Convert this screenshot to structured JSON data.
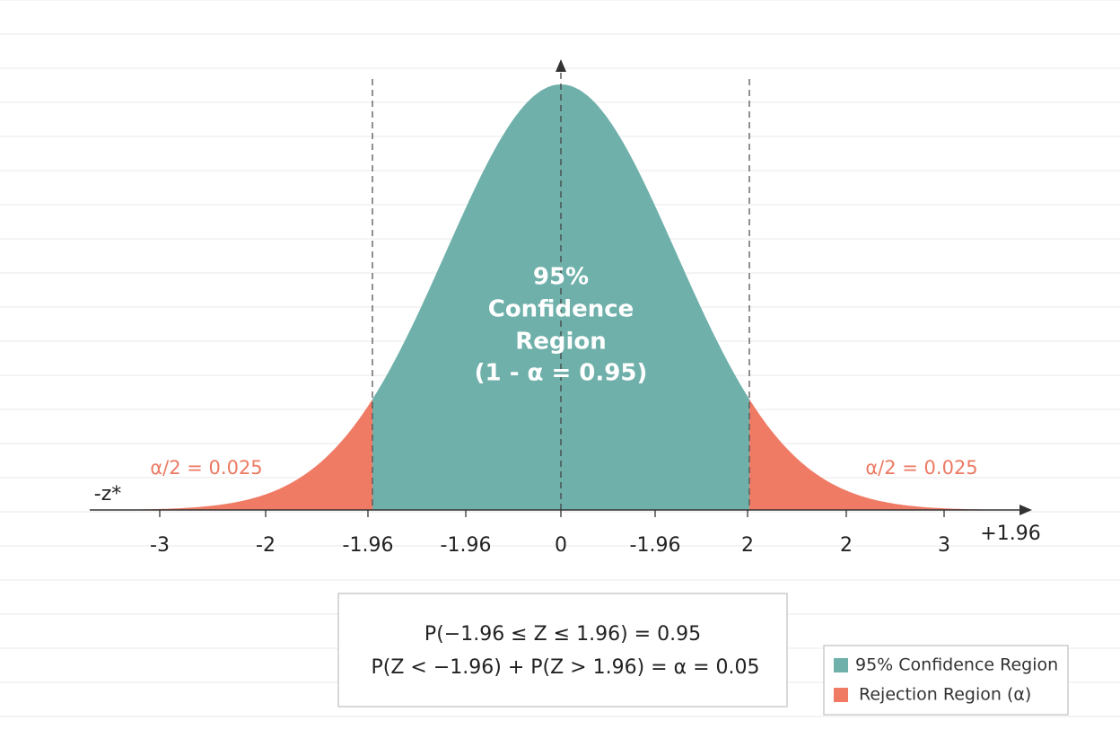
{
  "axis": {
    "tick_labels": [
      "-3",
      "-2",
      "-1.96",
      "-1.96",
      "0",
      "-1.96",
      "2",
      "2",
      "3"
    ],
    "right_label": "+1.96",
    "left_label": "-z*"
  },
  "annotations": {
    "left_tail": "α/2 = 0.025",
    "right_tail": "α/2 = 0.025"
  },
  "center_label": [
    "95%",
    "Confidence",
    "Region",
    "(1 - α = 0.95)"
  ],
  "formula": [
    "P(−1.96 ≤ Z ≤ 1.96) = 0.95",
    "P(Z < −1.96) + P(Z > 1.96) = α = 0.05"
  ],
  "legend": [
    {
      "label": "95% Confidence Region",
      "color": "#6fb0aa"
    },
    {
      "label": "Rejection Region (α)",
      "color": "#ef7b65"
    }
  ]
}
